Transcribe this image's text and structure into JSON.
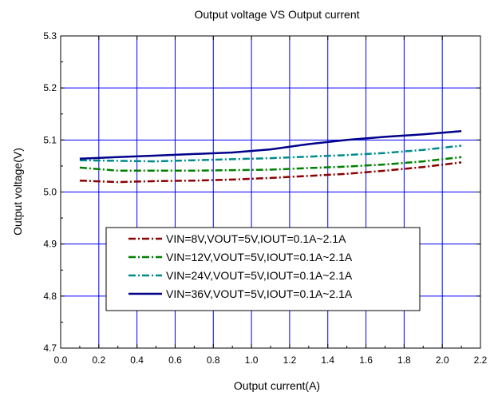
{
  "chart_data": {
    "type": "line",
    "title": "Output voltage VS Output current",
    "xlabel": "Output current(A)",
    "ylabel": "Output voltage(V)",
    "xlim": [
      0.0,
      2.2
    ],
    "ylim": [
      4.7,
      5.3
    ],
    "x_ticks": [
      "0.0",
      "0.2",
      "0.4",
      "0.6",
      "0.8",
      "1.0",
      "1.2",
      "1.4",
      "1.6",
      "1.8",
      "2.0",
      "2.2"
    ],
    "y_ticks": [
      "4.7",
      "4.8",
      "4.9",
      "5.0",
      "5.1",
      "5.2",
      "5.3"
    ],
    "grid": true,
    "grid_color": "#0000ff",
    "legend_position": "lower-center",
    "x": [
      0.1,
      0.3,
      0.5,
      0.7,
      0.9,
      1.1,
      1.3,
      1.5,
      1.7,
      1.9,
      2.1
    ],
    "series": [
      {
        "name": "VIN=8V,VOUT=5V,IOUT=0.1A~2.1A",
        "color": "#8b0000",
        "dash": "dash-dot",
        "values": [
          5.022,
          5.019,
          5.021,
          5.022,
          5.024,
          5.027,
          5.031,
          5.035,
          5.041,
          5.048,
          5.057
        ]
      },
      {
        "name": "VIN=12V,VOUT=5V,IOUT=0.1A~2.1A",
        "color": "#008000",
        "dash": "dash-dot",
        "values": [
          5.047,
          5.041,
          5.041,
          5.041,
          5.042,
          5.043,
          5.046,
          5.049,
          5.053,
          5.059,
          5.067
        ]
      },
      {
        "name": "VIN=24V,VOUT=5V,IOUT=0.1A~2.1A",
        "color": "#008b8b",
        "dash": "dash-dot",
        "values": [
          5.061,
          5.06,
          5.059,
          5.061,
          5.063,
          5.065,
          5.068,
          5.071,
          5.075,
          5.081,
          5.089
        ]
      },
      {
        "name": "VIN=36V,VOUT=5V,IOUT=0.1A~2.1A",
        "color": "#00008b",
        "dash": "solid",
        "values": [
          5.064,
          5.067,
          5.07,
          5.073,
          5.076,
          5.082,
          5.092,
          5.1,
          5.106,
          5.111,
          5.117
        ]
      }
    ]
  }
}
